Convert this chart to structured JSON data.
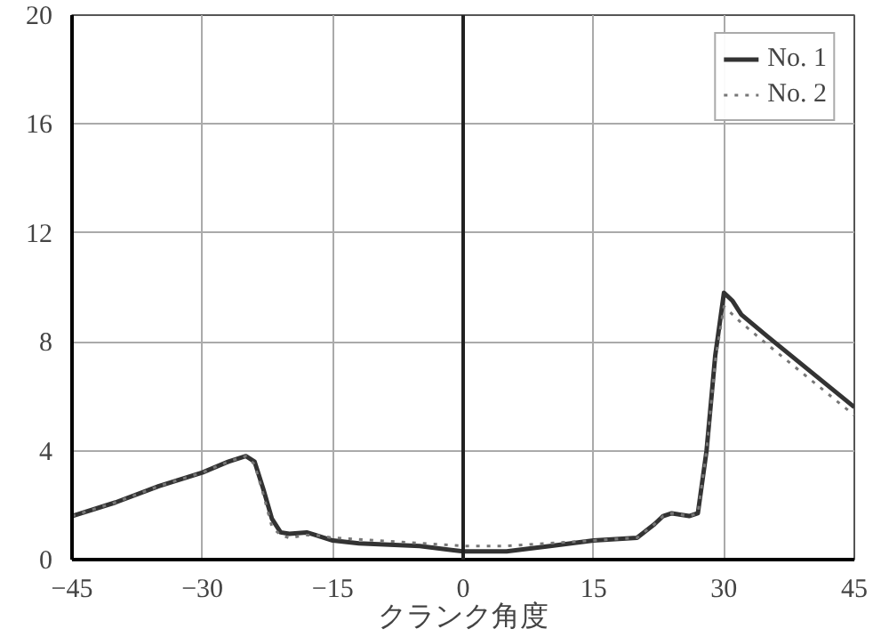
{
  "chart_data": {
    "type": "line",
    "xlabel": "クランク角度",
    "xlim": [
      -45,
      45
    ],
    "xticks": [
      -45,
      -30,
      -15,
      0,
      15,
      30,
      45
    ],
    "ylim": [
      0,
      20
    ],
    "yticks": [
      0,
      4,
      8,
      12,
      16,
      20
    ],
    "grid": true,
    "legend": "top right",
    "ref_lines": [
      {
        "axis": "x",
        "value": 0,
        "color": "#222222"
      }
    ],
    "series": [
      {
        "name": "No. 1",
        "color": "#333333",
        "line_style": "solid",
        "x": [
          -45,
          -40,
          -35,
          -30,
          -27,
          -25,
          -24,
          -23,
          -22,
          -21,
          -20,
          -18,
          -17,
          -15,
          -12,
          -5,
          0,
          5,
          10,
          15,
          20,
          22,
          23,
          24,
          26,
          27,
          28,
          29,
          30,
          31,
          32,
          35,
          40,
          45
        ],
        "values": [
          1.6,
          2.1,
          2.7,
          3.2,
          3.6,
          3.8,
          3.6,
          2.6,
          1.5,
          1.0,
          0.95,
          1.0,
          0.9,
          0.7,
          0.6,
          0.5,
          0.3,
          0.3,
          0.5,
          0.7,
          0.8,
          1.3,
          1.6,
          1.7,
          1.6,
          1.7,
          4.0,
          7.5,
          9.8,
          9.5,
          9.0,
          8.2,
          6.9,
          5.6
        ]
      },
      {
        "name": "No. 2",
        "color": "#777777",
        "line_style": "dotted",
        "x": [
          -45,
          -40,
          -35,
          -30,
          -27,
          -25,
          -24,
          -23,
          -22,
          -21,
          -20,
          -18,
          -17,
          -15,
          -10,
          0,
          5,
          10,
          15,
          20,
          22,
          23,
          24,
          26,
          27,
          28,
          29,
          30,
          31,
          32,
          35,
          40,
          45
        ],
        "values": [
          1.6,
          2.1,
          2.7,
          3.2,
          3.6,
          3.8,
          3.5,
          2.4,
          1.2,
          0.9,
          0.8,
          0.9,
          0.9,
          0.8,
          0.7,
          0.5,
          0.5,
          0.6,
          0.7,
          0.8,
          1.3,
          1.6,
          1.7,
          1.6,
          1.7,
          4.0,
          7.3,
          9.3,
          9.0,
          8.7,
          7.9,
          6.6,
          5.3
        ]
      }
    ]
  }
}
